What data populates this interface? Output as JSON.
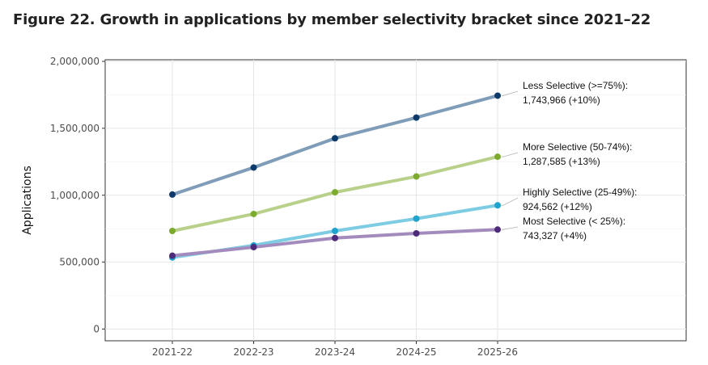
{
  "chart_data": {
    "type": "line",
    "title": "Figure 22. Growth in applications by member selectivity bracket since 2021–22",
    "xlabel": "",
    "ylabel": "Applications",
    "categories": [
      "2021-22",
      "2022-23",
      "2023-24",
      "2024-25",
      "2025-26"
    ],
    "ylim": [
      0,
      2000000
    ],
    "yticks": [
      0,
      500000,
      1000000,
      1500000,
      2000000
    ],
    "ytick_labels": [
      "0",
      "500,000",
      "1,000,000",
      "1,500,000",
      "2,000,000"
    ],
    "grid": true,
    "legend": "direct-labels-right",
    "series": [
      {
        "name": "Less Selective (>=75%):",
        "value_label": "1,743,966 (+10%)",
        "line_color": "#7f9cb8",
        "point_color": "#0d3a6a",
        "values": [
          1005000,
          1207000,
          1425000,
          1580000,
          1743966
        ]
      },
      {
        "name": "More Selective (50-74%):",
        "value_label": "1,287,585 (+13%)",
        "line_color": "#b8d08a",
        "point_color": "#7cab2f",
        "values": [
          733000,
          860000,
          1022000,
          1140000,
          1287585
        ]
      },
      {
        "name": "Highly Selective (25-49%):",
        "value_label": "924,562 (+12%)",
        "line_color": "#7dcce3",
        "point_color": "#1fa3cf",
        "values": [
          535000,
          625000,
          733000,
          825000,
          924562
        ]
      },
      {
        "name": "Most Selective (< 25%):",
        "value_label": "743,327 (+4%)",
        "line_color": "#a48bbd",
        "point_color": "#4e2b7a",
        "values": [
          548000,
          612000,
          680000,
          715000,
          743327
        ]
      }
    ]
  }
}
